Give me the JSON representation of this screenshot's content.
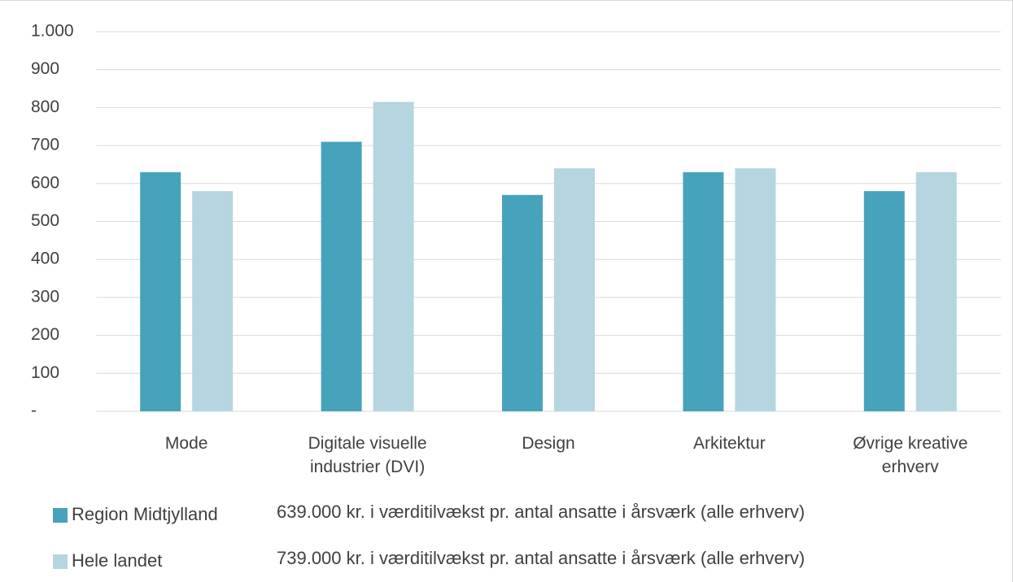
{
  "chart_data": {
    "type": "bar",
    "categories": [
      "Mode",
      "Digitale visuelle industrier (DVI)",
      "Design",
      "Arkitektur",
      "Øvrige kreative erhverv"
    ],
    "series": [
      {
        "name": "Region Midtjylland",
        "color": "#46a3bb",
        "values": [
          630,
          710,
          570,
          630,
          580
        ]
      },
      {
        "name": "Hele landet",
        "color": "#b5d5e0",
        "values": [
          580,
          815,
          640,
          640,
          630
        ]
      }
    ],
    "annotations": [
      "639.000 kr. i værditilvækst pr. antal ansatte i årsværk (alle erhverv)",
      "739.000 kr. i værditilvækst pr. antal ansatte i årsværk (alle erhverv)"
    ],
    "ylim": [
      0,
      1000
    ],
    "yticks": [
      {
        "value": 0,
        "label": "-"
      },
      100,
      200,
      300,
      400,
      500,
      600,
      700,
      800,
      900,
      {
        "value": 1000,
        "label": "1.000"
      }
    ],
    "grid": true,
    "legend": "bottom"
  }
}
